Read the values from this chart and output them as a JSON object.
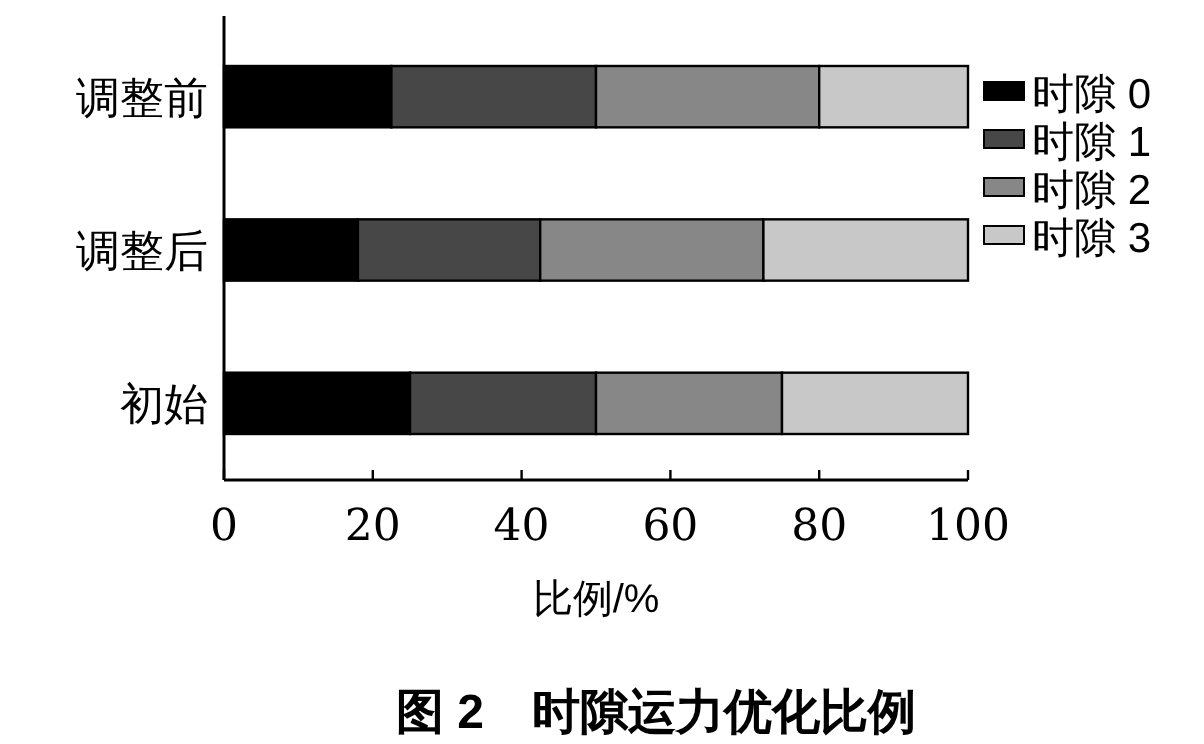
{
  "chart_data": {
    "type": "bar",
    "orientation": "horizontal",
    "stacked": true,
    "title": "图 2　时隙运力优化比例",
    "xlabel": "比例/%",
    "categories": [
      "调整前",
      "调整后",
      "初始"
    ],
    "series": [
      {
        "name": "时隙 0",
        "color": "#000000",
        "values": [
          22.5,
          18,
          25
        ]
      },
      {
        "name": "时隙 1",
        "color": "#474747",
        "values": [
          27.5,
          24.5,
          25
        ]
      },
      {
        "name": "时隙 2",
        "color": "#878787",
        "values": [
          30,
          30,
          25
        ]
      },
      {
        "name": "时隙 3",
        "color": "#c8c8c8",
        "values": [
          20,
          27.5,
          25
        ]
      }
    ],
    "xlim": [
      0,
      100
    ],
    "xticks": [
      0,
      20,
      40,
      60,
      80,
      100
    ],
    "legend": "right",
    "grid": false
  }
}
